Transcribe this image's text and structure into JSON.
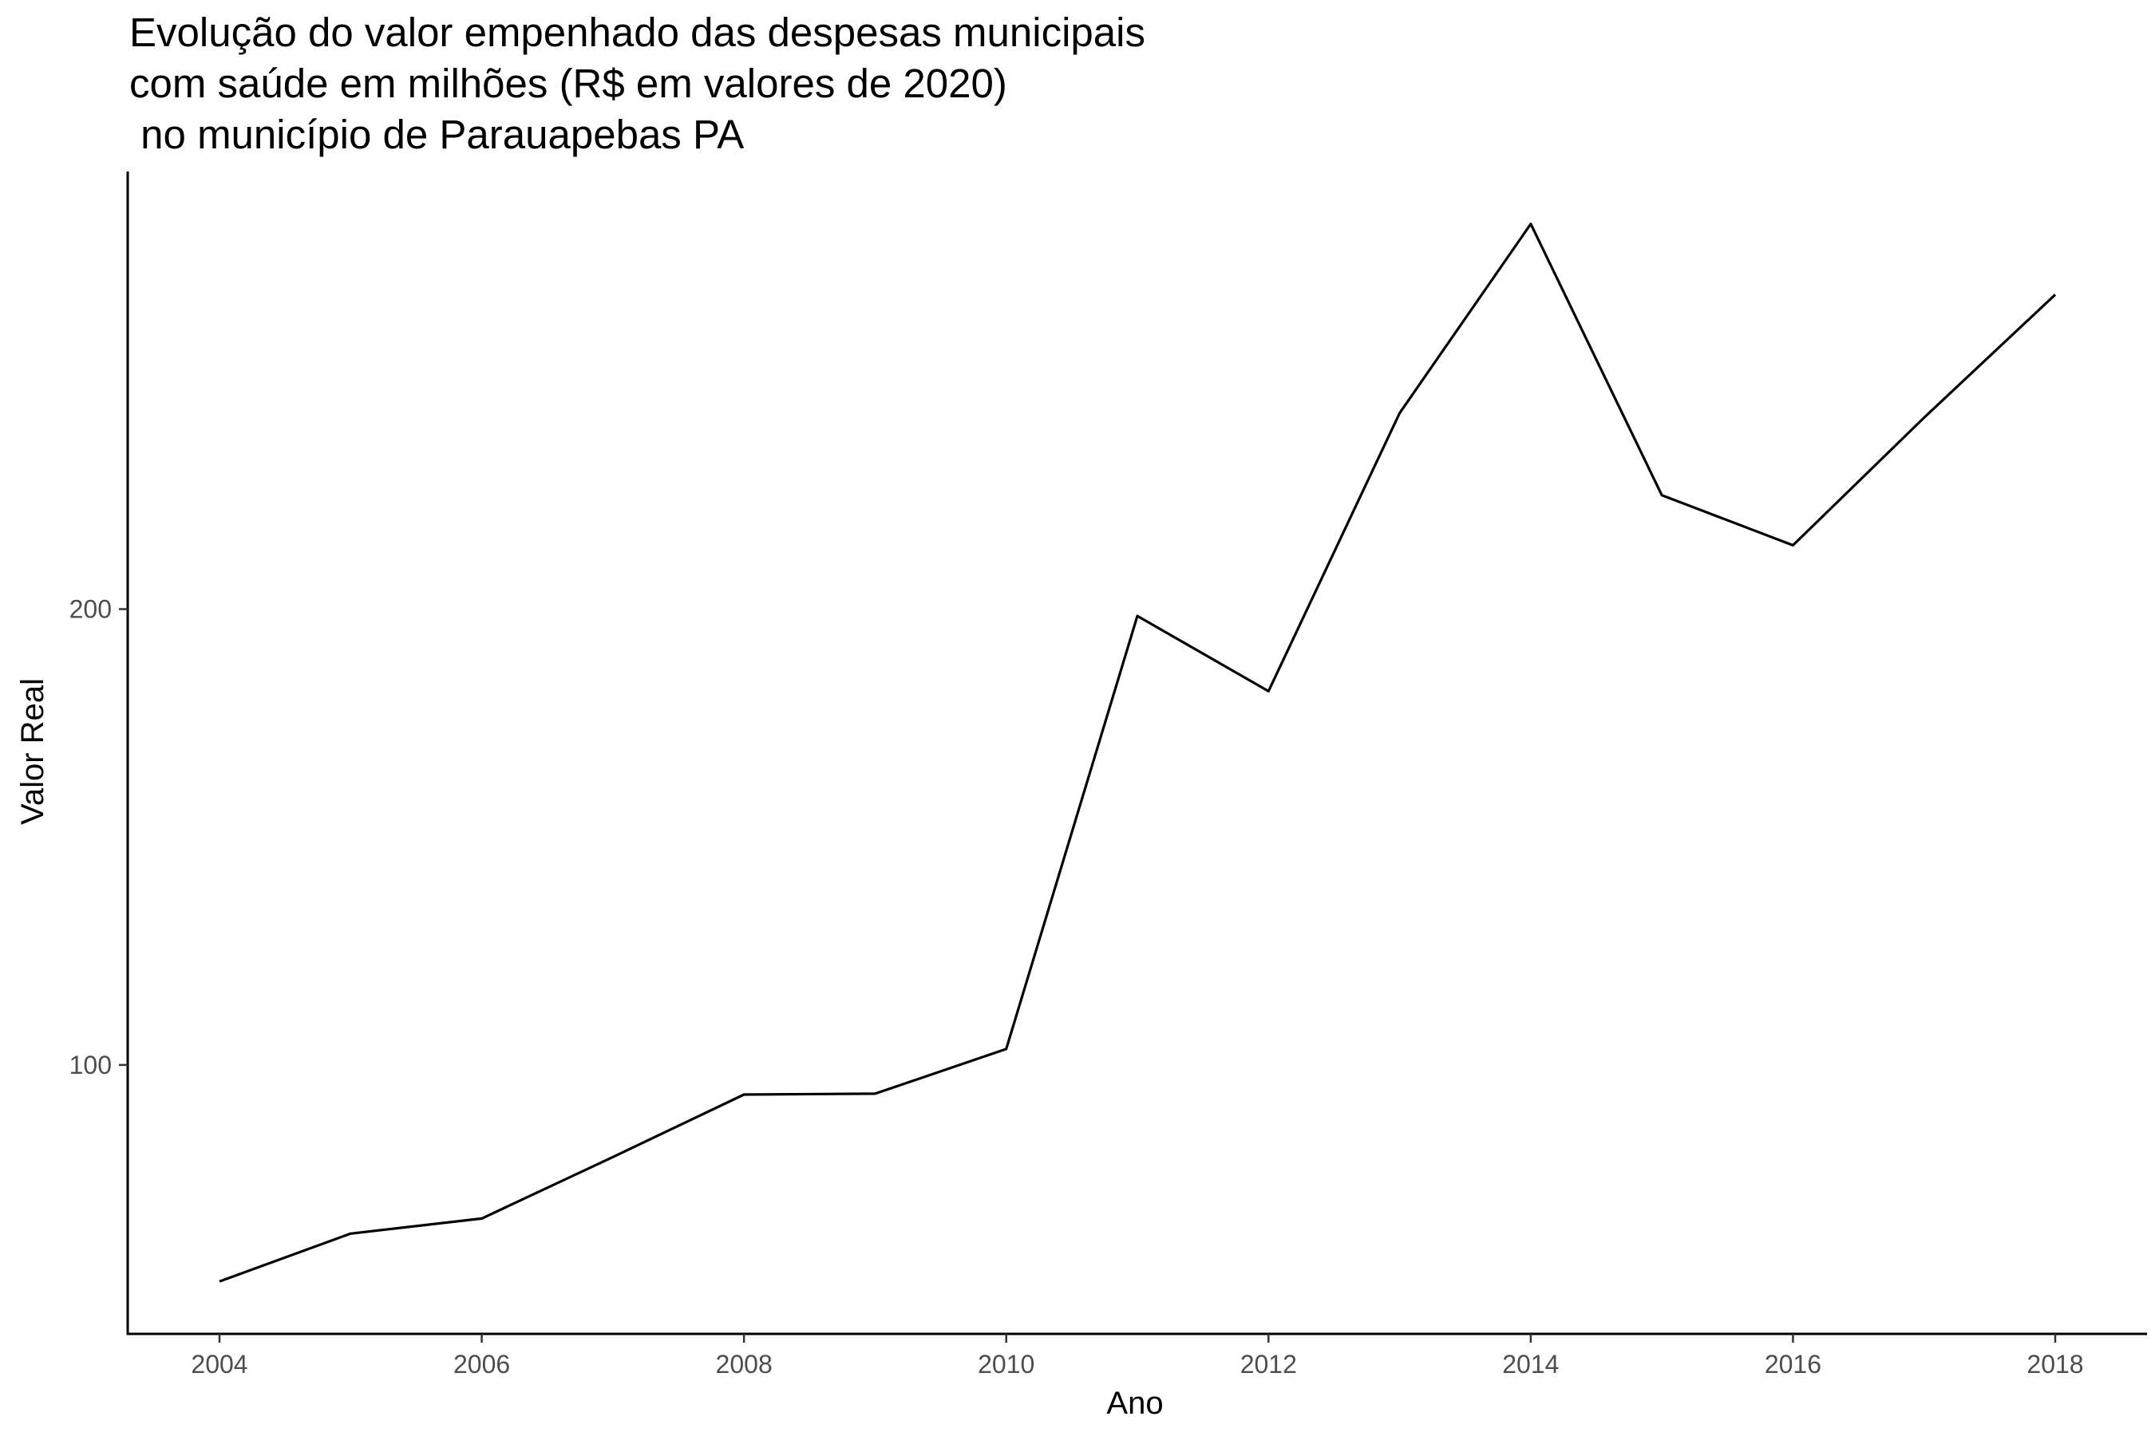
{
  "chart_data": {
    "type": "line",
    "title_lines": [
      "Evolução do valor empenhado das despesas municipais",
      "com saúde em milhões (R$ em valores de 2020)",
      " no município de Parauapebas PA"
    ],
    "xlabel": "Ano",
    "ylabel": "Valor Real",
    "x_ticks": [
      2004,
      2006,
      2008,
      2010,
      2012,
      2014,
      2016,
      2018
    ],
    "y_ticks": [
      100,
      200
    ],
    "xlim": [
      2003.3,
      2018.7
    ],
    "ylim": [
      41,
      296
    ],
    "grid": false,
    "legend": "none",
    "line_color": "#000000",
    "series": [
      {
        "x": [
          2004,
          2005,
          2006,
          2007,
          2008,
          2009,
          2010,
          2011,
          2012,
          2013,
          2014,
          2015,
          2016,
          2017,
          2018
        ],
        "values": [
          52.5,
          63,
          66.3,
          79.8,
          93.5,
          93.7,
          103.5,
          198.5,
          182,
          243,
          284.5,
          225,
          214,
          242,
          269
        ]
      }
    ]
  }
}
